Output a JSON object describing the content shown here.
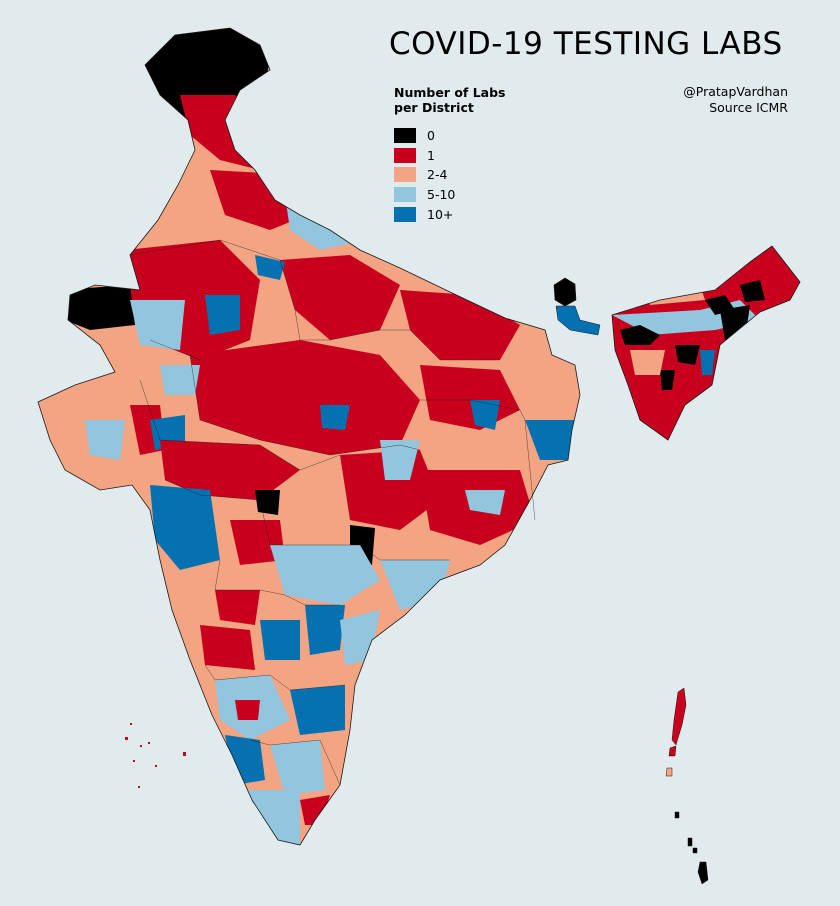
{
  "title": "COVID-19 TESTING LABS",
  "legend": {
    "title_line1": "Number of Labs",
    "title_line2": "per District",
    "items": [
      {
        "label": "0",
        "color": "#000000"
      },
      {
        "label": "1",
        "color": "#c8001e"
      },
      {
        "label": "2-4",
        "color": "#f3a482"
      },
      {
        "label": "5-10",
        "color": "#92c5de"
      },
      {
        "label": "10+",
        "color": "#0571b0"
      }
    ],
    "placement": "top-right"
  },
  "credit": {
    "author": "@PratapVardhan",
    "source": "Source ICMR"
  },
  "colors": {
    "background": "#e1ebee",
    "border": "#1a1a1a"
  }
}
